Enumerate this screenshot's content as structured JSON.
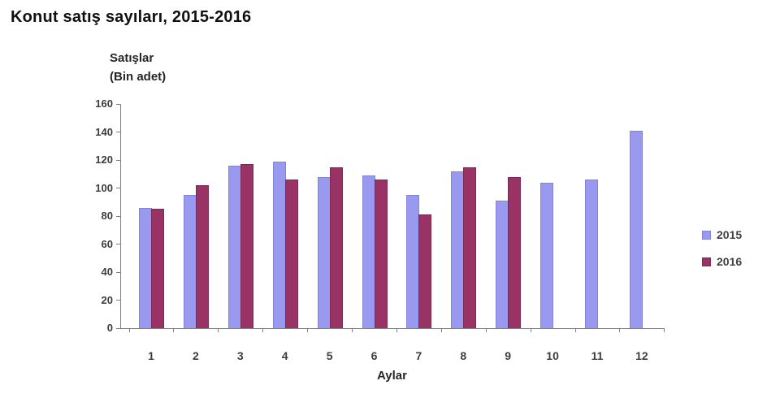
{
  "title": "Konut satış sayıları, 2015-2016",
  "y_axis_header": [
    "Satışlar",
    "(Bin adet)"
  ],
  "chart_data": {
    "type": "bar",
    "title": "Konut satış sayıları, 2015-2016",
    "categories": [
      "1",
      "2",
      "3",
      "4",
      "5",
      "6",
      "7",
      "8",
      "9",
      "10",
      "11",
      "12"
    ],
    "series": [
      {
        "name": "2015",
        "color": "#9999EF",
        "border_color": "#8383D8",
        "values": [
          86,
          95,
          116,
          119,
          108,
          109,
          95,
          112,
          91,
          104,
          106,
          141
        ]
      },
      {
        "name": "2016",
        "color": "#993366",
        "border_color": "#7E2A54",
        "values": [
          85,
          102,
          117,
          106,
          115,
          106,
          81,
          115,
          108,
          null,
          null,
          null
        ]
      }
    ],
    "xlabel": "Aylar",
    "ylabel": "Satışlar (Bin adet)",
    "ylim": [
      0,
      160
    ],
    "ytick_step": 20,
    "grid": false,
    "legend_position": "right",
    "axis_color": "#808080",
    "tick_label_color": "#3d3d3d",
    "background_color": "#ffffff"
  }
}
